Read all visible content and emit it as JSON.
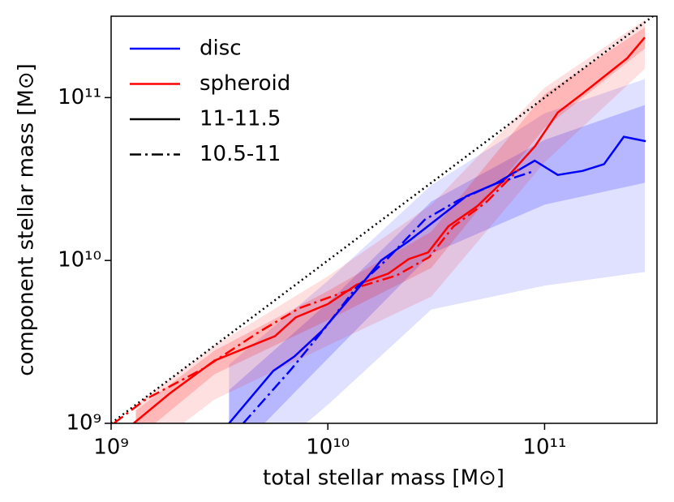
{
  "chart_data": {
    "type": "line",
    "xlabel": "total stellar mass [M⊙]",
    "ylabel": "component stellar mass [M⊙]",
    "xscale": "log",
    "yscale": "log",
    "xlim": [
      1000000000.0,
      330000000000.0
    ],
    "ylim": [
      1000000000.0,
      316000000000.0
    ],
    "xticks": [
      {
        "value": 1000000000.0,
        "label": "10⁹"
      },
      {
        "value": 10000000000.0,
        "label": "10¹⁰"
      },
      {
        "value": 100000000000.0,
        "label": "10¹¹"
      }
    ],
    "yticks": [
      {
        "value": 1000000000.0,
        "label": "10⁹"
      },
      {
        "value": 10000000000.0,
        "label": "10¹⁰"
      },
      {
        "value": 100000000000.0,
        "label": "10¹¹"
      }
    ],
    "one_to_one_line": true,
    "legend_position": "upper left",
    "legend": [
      {
        "label": "disc",
        "color": "#0000ff",
        "linestyle": "solid"
      },
      {
        "label": "spheroid",
        "color": "#ff0000",
        "linestyle": "solid"
      },
      {
        "label": "11-11.5",
        "color": "#000000",
        "linestyle": "solid"
      },
      {
        "label": "10.5-11",
        "color": "#000000",
        "linestyle": "dashdot"
      }
    ],
    "bands": [
      {
        "color": "#0000ff",
        "opacity": 0.12,
        "x": [
          3500000000.0,
          10000000000.0,
          30000000000.0,
          100000000000.0,
          290000000000.0
        ],
        "lower": [
          400000000.0,
          1300000000.0,
          5000000000.0,
          7000000000.0,
          8500000000.0
        ],
        "upper": [
          2300000000.0,
          7500000000.0,
          29000000000.0,
          80000000000.0,
          130000000000.0
        ]
      },
      {
        "color": "#0000ff",
        "opacity": 0.18,
        "x": [
          3500000000.0,
          10000000000.0,
          30000000000.0,
          100000000000.0,
          290000000000.0
        ],
        "lower": [
          600000000.0,
          2500000000.0,
          11000000000.0,
          22000000000.0,
          30000000000.0
        ],
        "upper": [
          1600000000.0,
          5500000000.0,
          23000000000.0,
          55000000000.0,
          90000000000.0
        ]
      },
      {
        "color": "#ff0000",
        "opacity": 0.12,
        "x": [
          1300000000.0,
          3000000000.0,
          10000000000.0,
          30000000000.0,
          100000000000.0,
          290000000000.0
        ],
        "lower": [
          600000000.0,
          1400000000.0,
          3000000000.0,
          6000000000.0,
          40000000000.0,
          150000000000.0
        ],
        "upper": [
          1300000000.0,
          3000000000.0,
          8000000000.0,
          22000000000.0,
          115000000000.0,
          300000000000.0
        ]
      },
      {
        "color": "#ff0000",
        "opacity": 0.18,
        "x": [
          1300000000.0,
          3000000000.0,
          10000000000.0,
          30000000000.0,
          100000000000.0,
          290000000000.0
        ],
        "lower": [
          800000000.0,
          2000000000.0,
          4300000000.0,
          9000000000.0,
          65000000000.0,
          200000000000.0
        ],
        "upper": [
          1200000000.0,
          2800000000.0,
          6500000000.0,
          15000000000.0,
          105000000000.0,
          270000000000.0
        ]
      }
    ],
    "series": [
      {
        "color": "#ff0000",
        "linestyle": "solid",
        "x": [
          1270000000.0,
          1870000000.0,
          3000000000.0,
          5700000000.0,
          7100000000.0,
          10000000000.0,
          13600000000.0,
          19000000000.0,
          23600000000.0,
          29000000000.0,
          36000000000.0,
          49000000000.0,
          66000000000.0,
          90000000000.0,
          115000000000.0,
          150000000000.0,
          190000000000.0,
          240000000000.0,
          290000000000.0
        ],
        "values": [
          1000000000.0,
          1530000000.0,
          2430000000.0,
          3430000000.0,
          4470000000.0,
          5400000000.0,
          7100000000.0,
          8300000000.0,
          10200000000.0,
          11200000000.0,
          16200000000.0,
          21600000000.0,
          31600000000.0,
          50000000000.0,
          81000000000.0,
          106000000000.0,
          136000000000.0,
          174000000000.0,
          234000000000.0
        ]
      },
      {
        "color": "#0000ff",
        "linestyle": "solid",
        "x": [
          3500000000.0,
          5600000000.0,
          7000000000.0,
          9400000000.0,
          13500000000.0,
          17600000000.0,
          23700000000.0,
          32000000000.0,
          43500000000.0,
          59000000000.0,
          90000000000.0,
          115000000000.0,
          150000000000.0,
          188000000000.0,
          232000000000.0,
          293000000000.0
        ],
        "values": [
          1000000000.0,
          2100000000.0,
          2570000000.0,
          3700000000.0,
          6500000000.0,
          10000000000.0,
          13200000000.0,
          18000000000.0,
          24800000000.0,
          29500000000.0,
          41000000000.0,
          33500000000.0,
          35500000000.0,
          39000000000.0,
          57500000000.0,
          54000000000.0
        ]
      },
      {
        "color": "#ff0000",
        "linestyle": "dashdot",
        "x": [
          1030000000.0,
          1450000000.0,
          2650000000.0,
          4800000000.0,
          7400000000.0,
          13500000000.0,
          20800000000.0,
          29400000000.0,
          38000000000.0,
          54000000000.0,
          76000000000.0
        ],
        "values": [
          1000000000.0,
          1410000000.0,
          2160000000.0,
          3630000000.0,
          5100000000.0,
          6800000000.0,
          8100000000.0,
          10500000000.0,
          16200000000.0,
          22900000000.0,
          36300000000.0
        ]
      },
      {
        "color": "#0000ff",
        "linestyle": "dashdot",
        "x": [
          4070000000.0,
          6800000000.0,
          9700000000.0,
          13500000000.0,
          18500000000.0,
          28000000000.0,
          40000000000.0,
          59000000000.0,
          90000000000.0
        ],
        "values": [
          1000000000.0,
          2160000000.0,
          3850000000.0,
          6800000000.0,
          10000000000.0,
          17800000000.0,
          23400000000.0,
          29500000000.0,
          35500000000.0
        ]
      }
    ]
  }
}
